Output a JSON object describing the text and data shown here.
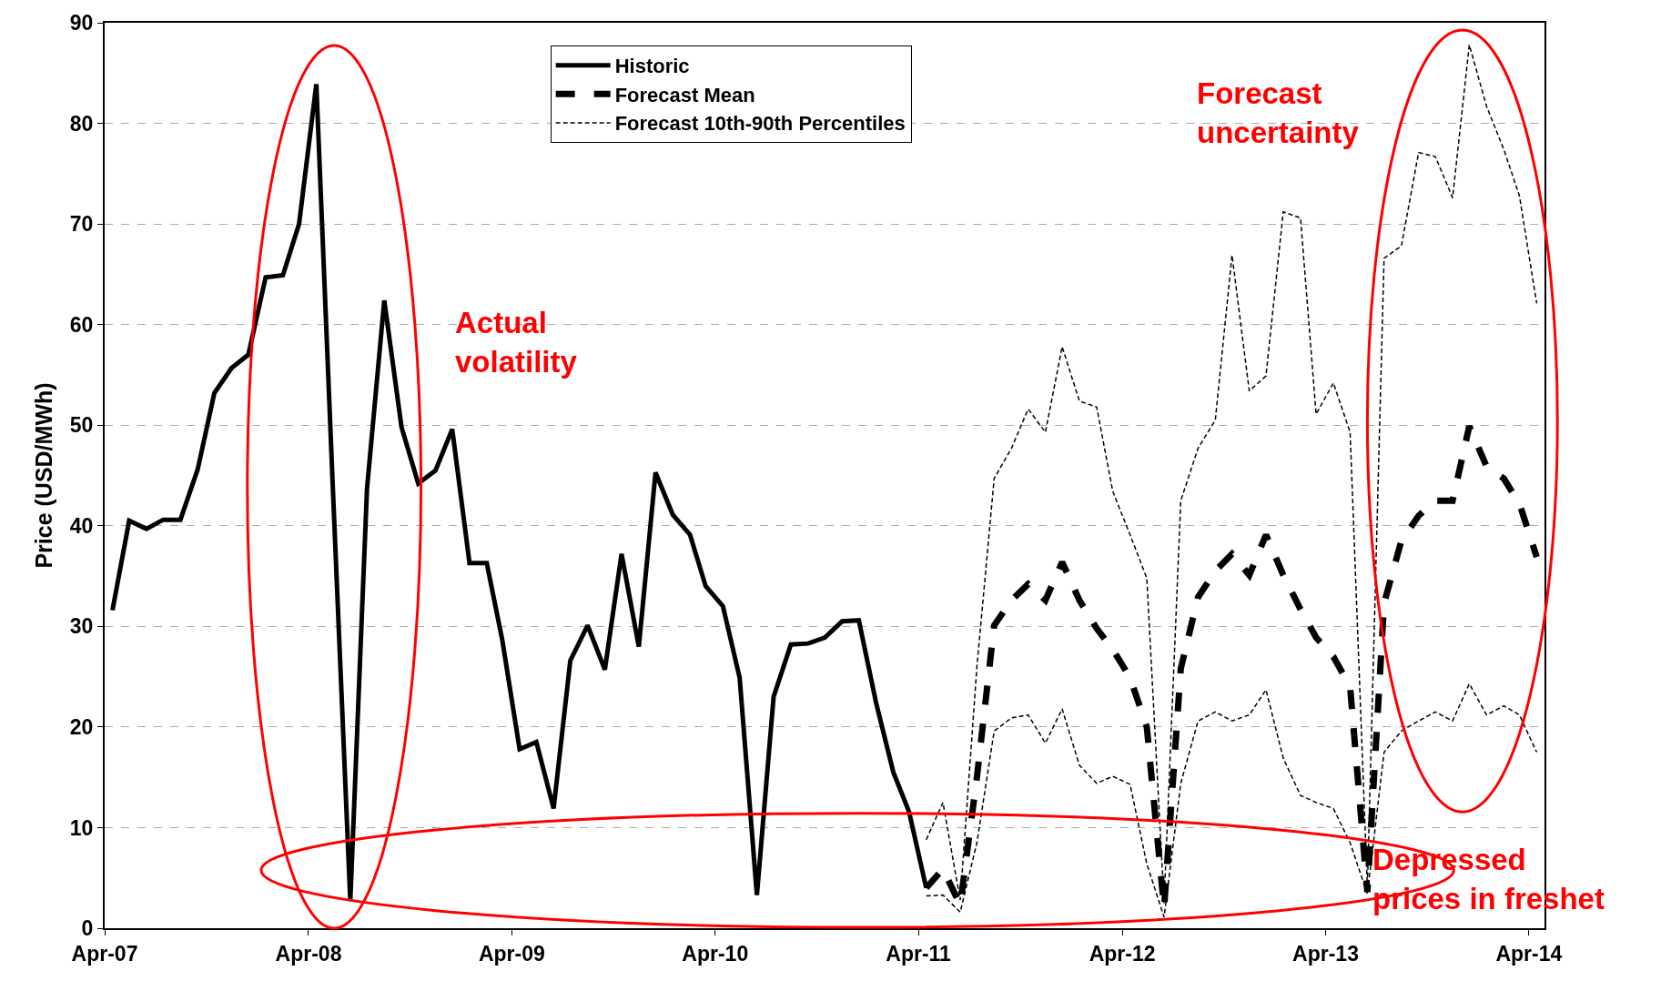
{
  "chart_data": {
    "type": "line",
    "ylabel": "Price (USD/MWh)",
    "xlim": [
      "2007-04-01",
      "2014-04-29"
    ],
    "xticks": [
      {
        "value": "2007-04-01",
        "label": "Apr-07"
      },
      {
        "value": "2008-04-01",
        "label": "Apr-08"
      },
      {
        "value": "2009-04-01",
        "label": "Apr-09"
      },
      {
        "value": "2010-04-01",
        "label": "Apr-10"
      },
      {
        "value": "2011-04-01",
        "label": "Apr-11"
      },
      {
        "value": "2012-04-01",
        "label": "Apr-12"
      },
      {
        "value": "2013-04-01",
        "label": "Apr-13"
      },
      {
        "value": "2014-04-01",
        "label": "Apr-14"
      }
    ],
    "ylim": [
      0,
      90
    ],
    "yticks": [
      0,
      10,
      20,
      30,
      40,
      50,
      60,
      70,
      80,
      90
    ],
    "grid": "y",
    "legend": "top",
    "annotations": [
      "Actual volatility",
      "Forecast uncertainty",
      "Depressed prices in freshet"
    ],
    "series": [
      {
        "name": "Historic",
        "color": "#000000",
        "line_style": "solid",
        "x": [
          "2007-04-15",
          "2007-05-15",
          "2007-06-15",
          "2007-07-15",
          "2007-08-15",
          "2007-09-15",
          "2007-10-15",
          "2007-11-15",
          "2007-12-15",
          "2008-01-15",
          "2008-02-15",
          "2008-03-15",
          "2008-04-15",
          "2008-05-15",
          "2008-06-15",
          "2008-07-15",
          "2008-08-15",
          "2008-09-15",
          "2008-10-15",
          "2008-11-15",
          "2008-12-15",
          "2009-01-15",
          "2009-02-15",
          "2009-03-15",
          "2009-04-15",
          "2009-05-15",
          "2009-06-15",
          "2009-07-15",
          "2009-08-15",
          "2009-09-15",
          "2009-10-15",
          "2009-11-15",
          "2009-12-15",
          "2010-01-15",
          "2010-02-15",
          "2010-03-15",
          "2010-04-15",
          "2010-05-15",
          "2010-06-15",
          "2010-07-15",
          "2010-08-15",
          "2010-09-15",
          "2010-10-15",
          "2010-11-15",
          "2010-12-15",
          "2011-01-15",
          "2011-02-15",
          "2011-03-15",
          "2011-04-15"
        ],
        "values": [
          31.6,
          40.5,
          39.7,
          40.6,
          40.6,
          45.6,
          53.2,
          55.7,
          57.0,
          64.7,
          64.9,
          70.0,
          83.9,
          43.3,
          2.7,
          43.7,
          62.4,
          49.8,
          44.2,
          45.5,
          49.6,
          36.3,
          36.3,
          28.6,
          17.8,
          18.5,
          11.9,
          26.6,
          30.1,
          25.7,
          37.2,
          28.0,
          45.3,
          41.1,
          39.1,
          34.0,
          32.0,
          24.9,
          3.3,
          23.0,
          28.2,
          28.3,
          28.9,
          30.5,
          30.6,
          22.4,
          15.5,
          11.6,
          4.0
        ]
      },
      {
        "name": "Forecast Mean",
        "color": "#000000",
        "line_style": "dashed",
        "x": [
          "2011-04-15",
          "2011-05-15",
          "2011-06-15",
          "2011-07-15",
          "2011-08-15",
          "2011-09-15",
          "2011-10-15",
          "2011-11-15",
          "2011-12-15",
          "2012-01-15",
          "2012-02-15",
          "2012-03-15",
          "2012-04-15",
          "2012-05-15",
          "2012-06-15",
          "2012-07-15",
          "2012-08-15",
          "2012-09-15",
          "2012-10-15",
          "2012-11-15",
          "2012-12-15",
          "2013-01-15",
          "2013-02-15",
          "2013-03-15",
          "2013-04-15",
          "2013-05-15",
          "2013-06-15",
          "2013-07-15",
          "2013-08-15",
          "2013-09-15",
          "2013-10-15",
          "2013-11-15",
          "2013-12-15",
          "2014-01-15",
          "2014-02-15",
          "2014-03-15",
          "2014-04-15"
        ],
        "values": [
          4.0,
          5.9,
          2.3,
          15.0,
          30.1,
          32.6,
          34.2,
          32.6,
          36.4,
          32.6,
          29.8,
          27.7,
          24.9,
          20.0,
          2.0,
          25.8,
          32.9,
          35.5,
          37.2,
          35.1,
          39.1,
          35.1,
          31.7,
          28.9,
          27.0,
          24.0,
          3.6,
          32.3,
          38.5,
          41.0,
          42.5,
          42.5,
          49.9,
          45.9,
          44.7,
          42.2,
          36.9
        ]
      },
      {
        "name": "Forecast 10th-90th Percentiles",
        "color": "#000000",
        "line_style": "dashed",
        "x": [
          "2011-04-15",
          "2011-05-15",
          "2011-06-15",
          "2011-07-15",
          "2011-08-15",
          "2011-09-15",
          "2011-10-15",
          "2011-11-15",
          "2011-12-15",
          "2012-01-15",
          "2012-02-15",
          "2012-03-15",
          "2012-04-15",
          "2012-05-15",
          "2012-06-15",
          "2012-07-15",
          "2012-08-15",
          "2012-09-15",
          "2012-10-15",
          "2012-11-15",
          "2012-12-15",
          "2013-01-15",
          "2013-02-15",
          "2013-03-15",
          "2013-04-15",
          "2013-05-15",
          "2013-06-15",
          "2013-07-15",
          "2013-08-15",
          "2013-09-15",
          "2013-10-15",
          "2013-11-15",
          "2013-12-15",
          "2014-01-15",
          "2014-02-15",
          "2014-03-15",
          "2014-04-15"
        ],
        "values": [
          8.8,
          12.5,
          2.8,
          26.0,
          44.7,
          47.7,
          51.6,
          49.3,
          57.8,
          52.4,
          51.8,
          43.4,
          39.1,
          34.8,
          2.5,
          42.5,
          47.7,
          50.5,
          66.9,
          53.4,
          54.9,
          71.2,
          70.6,
          51.1,
          54.2,
          49.3,
          4.0,
          66.6,
          67.8,
          77.1,
          76.7,
          72.6,
          87.8,
          81.7,
          77.4,
          72.8,
          62.1
        ]
      },
      {
        "color": "#000000",
        "line_style": "dashed",
        "x": [
          "2011-04-15",
          "2011-05-15",
          "2011-06-15",
          "2011-07-15",
          "2011-08-15",
          "2011-09-15",
          "2011-10-15",
          "2011-11-15",
          "2011-12-15",
          "2012-01-15",
          "2012-02-15",
          "2012-03-15",
          "2012-04-15",
          "2012-05-15",
          "2012-06-15",
          "2012-07-15",
          "2012-08-15",
          "2012-09-15",
          "2012-10-15",
          "2012-11-15",
          "2012-12-15",
          "2013-01-15",
          "2013-02-15",
          "2013-03-15",
          "2013-04-15",
          "2013-05-15",
          "2013-06-15",
          "2013-07-15",
          "2013-08-15",
          "2013-09-15",
          "2013-10-15",
          "2013-11-15",
          "2013-12-15",
          "2014-01-15",
          "2014-02-15",
          "2014-03-15",
          "2014-04-15"
        ],
        "values": [
          3.2,
          3.3,
          1.6,
          8.5,
          19.6,
          20.9,
          21.2,
          18.4,
          21.8,
          16.2,
          14.4,
          15.1,
          14.3,
          6.4,
          1.1,
          14.4,
          20.6,
          21.5,
          20.6,
          21.2,
          23.7,
          16.9,
          13.2,
          12.5,
          11.9,
          8.5,
          3.4,
          17.5,
          19.6,
          20.6,
          21.5,
          20.6,
          24.3,
          21.2,
          22.1,
          21.2,
          17.5
        ]
      }
    ]
  }
}
